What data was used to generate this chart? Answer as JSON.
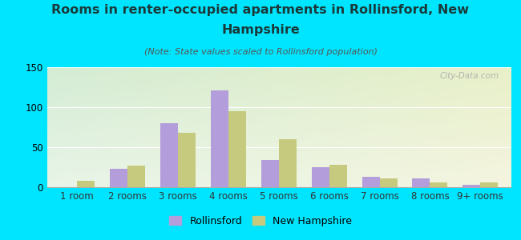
{
  "title_line1": "Rooms in renter-occupied apartments in Rollinsford, New",
  "title_line2": "Hampshire",
  "subtitle": "(Note: State values scaled to Rollinsford population)",
  "categories": [
    "1 room",
    "2 rooms",
    "3 rooms",
    "4 rooms",
    "5 rooms",
    "6 rooms",
    "7 rooms",
    "8 rooms",
    "9+ rooms"
  ],
  "rollinsford": [
    0,
    23,
    80,
    121,
    34,
    25,
    13,
    11,
    3
  ],
  "new_hampshire": [
    8,
    27,
    68,
    95,
    60,
    28,
    11,
    6,
    6
  ],
  "rollinsford_color": "#b39ddb",
  "nh_color": "#c5ca7e",
  "ylim": [
    0,
    150
  ],
  "yticks": [
    0,
    50,
    100,
    150
  ],
  "bar_width": 0.35,
  "fig_bg_color": "#00e5ff",
  "plot_bg_topleft": "#d4ecd4",
  "plot_bg_topright": "#e8f0c8",
  "plot_bg_bottomleft": "#e8f5e8",
  "plot_bg_bottomright": "#f5f5e0",
  "watermark": "City-Data.com",
  "legend_rollinsford": "Rollinsford",
  "legend_nh": "New Hampshire",
  "title_color": "#1a3a3a",
  "subtitle_color": "#555555",
  "title_fontsize": 11.5,
  "subtitle_fontsize": 8,
  "tick_fontsize": 8.5,
  "legend_fontsize": 9
}
